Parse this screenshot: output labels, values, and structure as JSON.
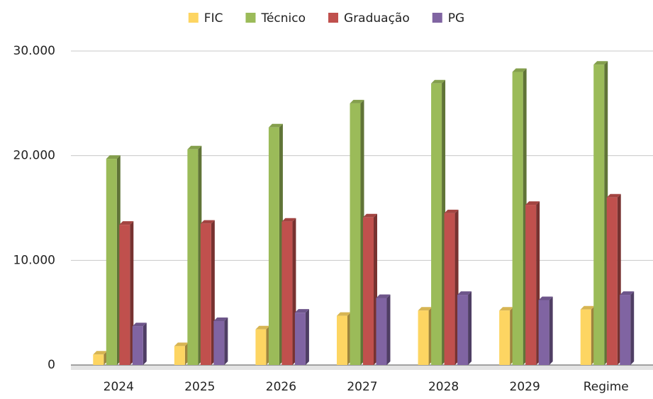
{
  "chart_data": {
    "type": "bar",
    "categories": [
      "2024",
      "2025",
      "2026",
      "2027",
      "2028",
      "2029",
      "Regime"
    ],
    "series": [
      {
        "name": "FIC",
        "color": "#fdd562",
        "values": [
          1000,
          1800,
          3400,
          4700,
          5200,
          5200,
          5300
        ]
      },
      {
        "name": "Técnico",
        "color": "#9bbb59",
        "values": [
          19700,
          20600,
          22700,
          25000,
          26900,
          28000,
          28700
        ]
      },
      {
        "name": "Graduação",
        "color": "#c0504d",
        "values": [
          13400,
          13500,
          13700,
          14100,
          14500,
          15300,
          16000
        ]
      },
      {
        "name": "PG",
        "color": "#8064a2",
        "values": [
          3700,
          4200,
          5000,
          6400,
          6700,
          6200,
          6700
        ]
      }
    ],
    "ylim": [
      0,
      30000
    ],
    "yticks": [
      0,
      {
        "value": 10000,
        "label": "10.000"
      },
      {
        "value": 20000,
        "label": "20.000"
      },
      {
        "value": 30000,
        "label": "30.000"
      }
    ],
    "grid": true,
    "legend": "top"
  }
}
